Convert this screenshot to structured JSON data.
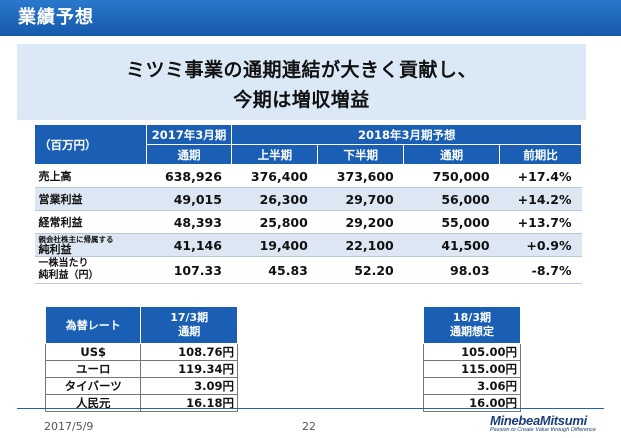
{
  "header": {
    "title": "業績予想"
  },
  "headline": {
    "line1": "ミツミ事業の通期連結が大きく貢献し、",
    "line2": "今期は増収増益"
  },
  "main_table": {
    "unit": "（百万円）",
    "group_fy2017": "2017年3月期",
    "group_fy2018": "2018年3月期予想",
    "sub": {
      "fy2017_full": "通期",
      "h1": "上半期",
      "h2": "下半期",
      "full": "通期",
      "yoy": "前期比"
    },
    "rows": [
      {
        "label": "売上高",
        "v2017": "638,926",
        "h1": "376,400",
        "h2": "373,600",
        "full": "750,000",
        "yoy": "+17.4%"
      },
      {
        "label": "営業利益",
        "v2017": "49,015",
        "h1": "26,300",
        "h2": "29,700",
        "full": "56,000",
        "yoy": "+14.2%"
      },
      {
        "label": "経常利益",
        "v2017": "48,393",
        "h1": "25,800",
        "h2": "29,200",
        "full": "55,000",
        "yoy": "+13.7%"
      },
      {
        "label_small": "親会社株主に帰属する",
        "label": "純利益",
        "v2017": "41,146",
        "h1": "19,400",
        "h2": "22,100",
        "full": "41,500",
        "yoy": "+0.9%"
      },
      {
        "label_l1": "一株当たり",
        "label_l2": "純利益（円）",
        "v2017": "107.33",
        "h1": "45.83",
        "h2": "52.20",
        "full": "98.03",
        "yoy": "-8.7%"
      }
    ]
  },
  "fx_table": {
    "label": "為替レート",
    "col_l1": "17/3期",
    "col_l2": "通期",
    "rows": [
      {
        "currency": "US$",
        "value": "108.76円"
      },
      {
        "currency": "ユーロ",
        "value": "119.34円"
      },
      {
        "currency": "タイバーツ",
        "value": "3.09円"
      },
      {
        "currency": "人民元",
        "value": "16.18円"
      }
    ]
  },
  "fx_forecast": {
    "col_l1": "18/3期",
    "col_l2": "通期想定",
    "values": [
      "105.00円",
      "115.00円",
      "3.06円",
      "16.00円"
    ]
  },
  "footer": {
    "date": "2017/5/9",
    "page": "22",
    "logo_name": "MinebeaMitsumi",
    "logo_tagline": "Passion to Create Value through Difference"
  },
  "colors": {
    "header": "#1a63b8",
    "table_header": "#1a5fb4",
    "headline_bg": "#dbe8f6",
    "row_shade": "#dde7f3"
  }
}
